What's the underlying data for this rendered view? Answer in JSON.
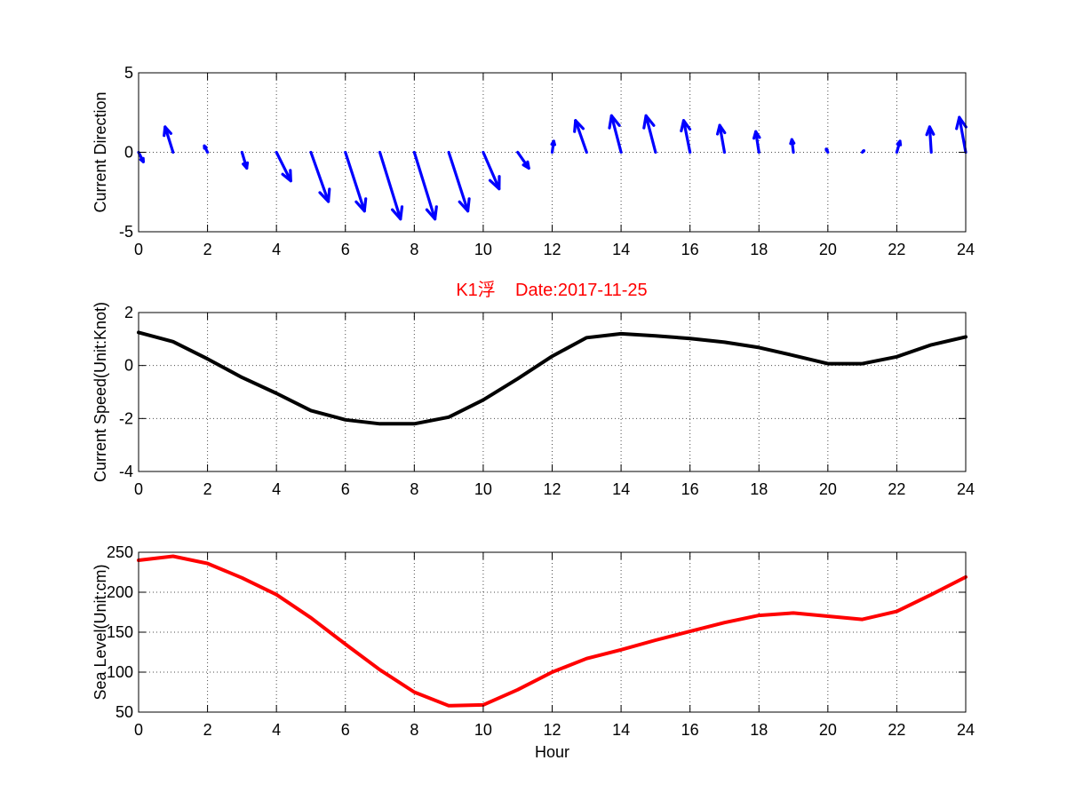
{
  "figure": {
    "title": "K1浮    Date:2017-11-25",
    "title_color": "#ff0000"
  },
  "chart_data": [
    {
      "type": "quiver",
      "ylabel": "Current Direction",
      "xlabel": "",
      "xlim": [
        0,
        24
      ],
      "ylim": [
        -5,
        5
      ],
      "xticks": [
        0,
        2,
        4,
        6,
        8,
        10,
        12,
        14,
        16,
        18,
        20,
        22,
        24
      ],
      "yticks": [
        -5,
        0,
        5
      ],
      "grid": true,
      "color": "#0000ff",
      "x": [
        0,
        1,
        2,
        3,
        4,
        5,
        6,
        7,
        8,
        9,
        10,
        11,
        12,
        13,
        14,
        15,
        16,
        17,
        18,
        19,
        20,
        21,
        22,
        23,
        24
      ],
      "u": [
        0.3,
        -0.5,
        -0.2,
        0.3,
        0.9,
        1.1,
        1.2,
        1.3,
        1.3,
        1.2,
        1.0,
        0.7,
        0.1,
        -0.7,
        -0.6,
        -0.6,
        -0.4,
        -0.3,
        -0.2,
        -0.1,
        -0.1,
        0.1,
        0.2,
        -0.1,
        -0.4
      ],
      "v": [
        -0.6,
        1.6,
        0.4,
        -1.0,
        -1.8,
        -3.1,
        -3.7,
        -4.2,
        -4.2,
        -3.7,
        -2.3,
        -1.0,
        0.7,
        2.0,
        2.3,
        2.3,
        2.0,
        1.7,
        1.3,
        0.8,
        0.2,
        0.1,
        0.7,
        1.6,
        2.2
      ]
    },
    {
      "type": "line",
      "ylabel": "Current Speed(Unit:Knot)",
      "xlabel": "",
      "xlim": [
        0,
        24
      ],
      "ylim": [
        -4,
        2
      ],
      "xticks": [
        0,
        2,
        4,
        6,
        8,
        10,
        12,
        14,
        16,
        18,
        20,
        22,
        24
      ],
      "yticks": [
        -4,
        -2,
        0,
        2
      ],
      "grid": true,
      "color": "#000000",
      "x": [
        0,
        1,
        2,
        3,
        4,
        5,
        6,
        7,
        8,
        9,
        10,
        11,
        12,
        13,
        14,
        15,
        16,
        17,
        18,
        19,
        20,
        21,
        22,
        23,
        24
      ],
      "y": [
        1.25,
        0.9,
        0.25,
        -0.45,
        -1.05,
        -1.7,
        -2.05,
        -2.2,
        -2.2,
        -1.95,
        -1.3,
        -0.5,
        0.35,
        1.05,
        1.2,
        1.12,
        1.02,
        0.88,
        0.68,
        0.38,
        0.07,
        0.07,
        0.33,
        0.78,
        1.08
      ]
    },
    {
      "type": "line",
      "ylabel": "Sea Level(Unit:cm)",
      "xlabel": "Hour",
      "xlim": [
        0,
        24
      ],
      "ylim": [
        50,
        250
      ],
      "xticks": [
        0,
        2,
        4,
        6,
        8,
        10,
        12,
        14,
        16,
        18,
        20,
        22,
        24
      ],
      "yticks": [
        50,
        100,
        150,
        200,
        250
      ],
      "grid": true,
      "color": "#ff0000",
      "x": [
        0,
        1,
        2,
        3,
        4,
        5,
        6,
        7,
        8,
        9,
        10,
        11,
        12,
        13,
        14,
        15,
        16,
        17,
        18,
        19,
        20,
        21,
        22,
        23,
        24
      ],
      "y": [
        240,
        245,
        236,
        218,
        197,
        168,
        135,
        103,
        75,
        58,
        59,
        78,
        100,
        117,
        128,
        140,
        151,
        162,
        171,
        174,
        170,
        166,
        176,
        197,
        219
      ]
    }
  ]
}
